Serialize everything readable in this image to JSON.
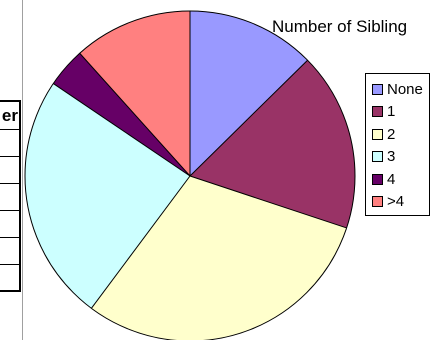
{
  "table_header_fragment": "er",
  "chart_data": {
    "type": "pie",
    "title": "Number of Sibling",
    "legend_position": "right",
    "categories": [
      "None",
      "1",
      "2",
      "3",
      "4",
      ">4"
    ],
    "values": [
      13,
      18,
      31,
      25,
      4,
      12
    ],
    "colors": [
      "#9999ff",
      "#993366",
      "#ffffcc",
      "#ccffff",
      "#660066",
      "#ff8080"
    ],
    "start_angle_deg": 0,
    "direction": "clockwise"
  }
}
